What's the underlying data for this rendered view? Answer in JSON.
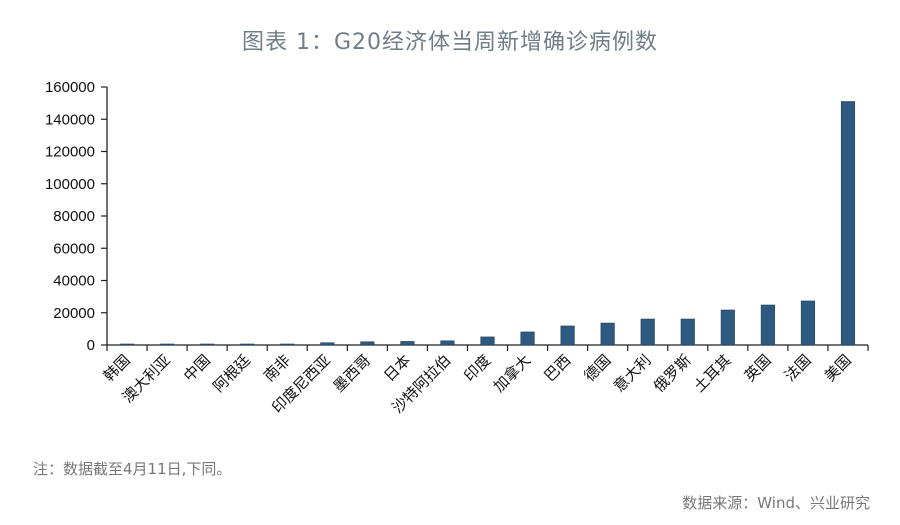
{
  "title": "图表 1：G20经济体当周新增确诊病例数",
  "note": "注：数据截至4月11日,下同。",
  "source": "数据来源：Wind、兴业研究",
  "colors": {
    "bar": "#2e5a82",
    "axis": "#222222",
    "title": "#6f7d88",
    "footer": "#777777"
  },
  "chart_data": {
    "type": "bar",
    "title": "图表 1：G20经济体当周新增确诊病例数",
    "xlabel": "",
    "ylabel": "",
    "ylim": [
      0,
      160000
    ],
    "yticks": [
      0,
      20000,
      40000,
      60000,
      80000,
      100000,
      120000,
      140000,
      160000
    ],
    "grid": false,
    "legend": null,
    "categories": [
      "韩国",
      "澳大利亚",
      "中国",
      "阿根廷",
      "南非",
      "印度尼西亚",
      "墨西哥",
      "日本",
      "沙特阿拉伯",
      "印度",
      "加拿大",
      "巴西",
      "德国",
      "意大利",
      "俄罗斯",
      "土耳其",
      "英国",
      "法国",
      "美国"
    ],
    "values": [
      300,
      600,
      400,
      500,
      500,
      1400,
      2000,
      2200,
      2600,
      5000,
      8100,
      11800,
      13600,
      16100,
      16100,
      21700,
      24800,
      27300,
      151000
    ]
  }
}
